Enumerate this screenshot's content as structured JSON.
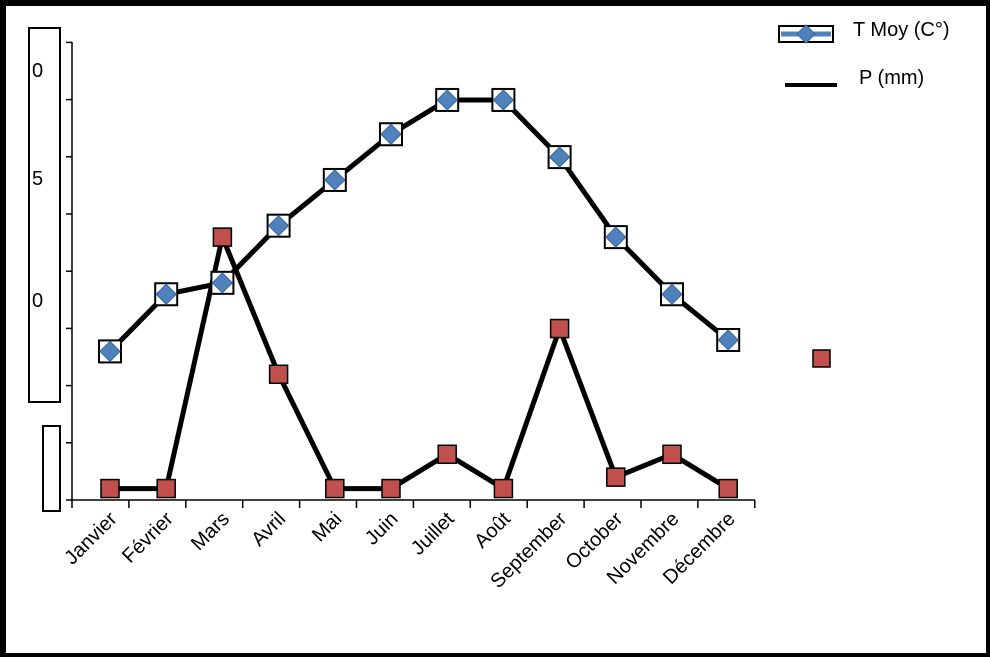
{
  "chart_data": {
    "type": "line",
    "categories": [
      "Janvier",
      "Février",
      "Mars",
      "Avril",
      "Mai",
      "Juin",
      "Juillet",
      "Août",
      "September",
      "October",
      "Novembre",
      "Décembre"
    ],
    "series": [
      {
        "name": "T Moy (C°)",
        "values": [
          13,
          18,
          19,
          24,
          28,
          32,
          35,
          35,
          30,
          23,
          18,
          14
        ],
        "color": "#4f81bd",
        "marker": "diamond"
      },
      {
        "name": "P (mm)",
        "values": [
          1,
          1,
          23,
          11,
          1,
          1,
          4,
          1,
          15,
          2,
          4,
          1
        ],
        "color": "#c0504d",
        "marker": "square"
      }
    ],
    "y_tick_labels_visible": [
      "0",
      "5",
      "0"
    ],
    "ylim": [
      0,
      40
    ],
    "grid": false,
    "legend_position": "top-right"
  },
  "colors": {
    "line": "#000000",
    "diamond_fill": "#4f81bd",
    "square_fill": "#c0504d"
  }
}
